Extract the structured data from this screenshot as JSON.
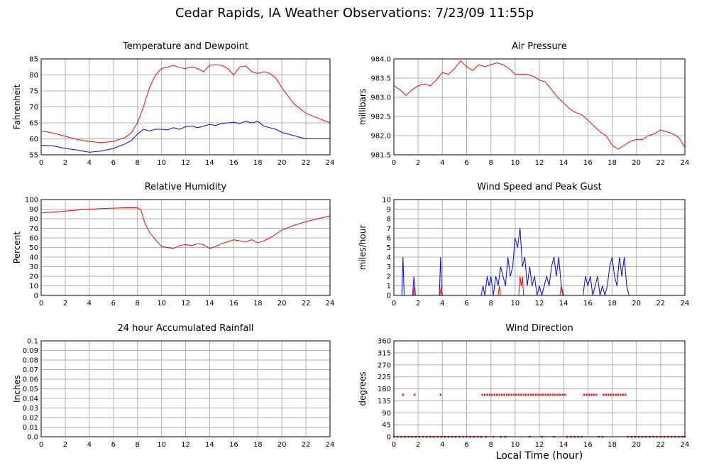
{
  "page": {
    "title": "Cedar Rapids, IA Weather Observations: 7/23/09 11:55p",
    "xaxis_title": "Local Time (hour)"
  },
  "colors": {
    "red": "#ff0000",
    "blue": "#0000ff",
    "grid": "#b0b0b0",
    "frame": "#000000"
  },
  "chart_data": [
    {
      "id": "temp",
      "type": "line",
      "title": "Temperature and Dewpoint",
      "ylabel": "Fahrenheit",
      "xlim": [
        0,
        24
      ],
      "ylim": [
        55,
        85
      ],
      "xticks": [
        0,
        2,
        4,
        6,
        8,
        10,
        12,
        14,
        16,
        18,
        20,
        22,
        24
      ],
      "yticks": [
        55,
        60,
        65,
        70,
        75,
        80,
        85
      ],
      "ytick_labels": [
        "55",
        "60",
        "65",
        "70",
        "75",
        "80",
        "85"
      ],
      "series": [
        {
          "color": "red",
          "x": [
            0,
            1,
            2,
            3,
            4,
            5,
            6,
            7,
            7.5,
            8,
            8.5,
            9,
            9.5,
            10,
            10.5,
            11,
            11.5,
            12,
            12.5,
            13,
            13.5,
            14,
            14.5,
            15,
            15.5,
            16,
            16.5,
            17,
            17.5,
            18,
            18.5,
            19,
            19.5,
            20,
            21,
            22,
            23,
            24
          ],
          "y": [
            62.5,
            61.8,
            60.8,
            59.8,
            59.2,
            58.8,
            59.2,
            60.5,
            62,
            65,
            70,
            76,
            80,
            82,
            82.5,
            83,
            82.3,
            82,
            82.5,
            82,
            81,
            83,
            83.2,
            83,
            82,
            80,
            82.5,
            82.8,
            81,
            80.5,
            81,
            80.5,
            79,
            76,
            71,
            68,
            66.5,
            65
          ]
        },
        {
          "color": "blue",
          "x": [
            0,
            1,
            2,
            3,
            4,
            5,
            6,
            7,
            7.5,
            8,
            8.5,
            9,
            9.5,
            10,
            10.5,
            11,
            11.5,
            12,
            12.5,
            13,
            13.5,
            14,
            14.5,
            15,
            15.5,
            16,
            16.5,
            17,
            17.5,
            18,
            18.5,
            19,
            19.5,
            20,
            21,
            22,
            23,
            24
          ],
          "y": [
            58,
            57.8,
            57,
            56.5,
            55.8,
            56.2,
            57,
            58.5,
            59.5,
            61.5,
            63,
            62.5,
            63,
            63,
            62.8,
            63.5,
            63,
            63.8,
            64,
            63.5,
            64,
            64.5,
            64.2,
            64.8,
            65,
            65.2,
            64.8,
            65.5,
            65,
            65.5,
            64,
            63.5,
            63,
            62,
            61,
            60,
            60,
            60
          ]
        }
      ]
    },
    {
      "id": "pressure",
      "type": "line",
      "title": "Air Pressure",
      "ylabel": "millibars",
      "xlim": [
        0,
        24
      ],
      "ylim": [
        981.5,
        984.0
      ],
      "xticks": [
        0,
        2,
        4,
        6,
        8,
        10,
        12,
        14,
        16,
        18,
        20,
        22,
        24
      ],
      "yticks": [
        981.5,
        982.0,
        982.5,
        983.0,
        983.5,
        984.0
      ],
      "ytick_labels": [
        "981.5",
        "982.0",
        "982.5",
        "983.0",
        "983.5",
        "984.0"
      ],
      "series": [
        {
          "color": "red",
          "x": [
            0,
            0.5,
            1,
            1.5,
            2,
            2.5,
            3,
            3.5,
            4,
            4.5,
            5,
            5.5,
            6,
            6.5,
            7,
            7.5,
            8,
            8.5,
            9,
            9.5,
            10,
            10.5,
            11,
            11.5,
            12,
            12.5,
            13,
            13.5,
            14,
            14.5,
            15,
            15.5,
            16,
            16.5,
            17,
            17.5,
            18,
            18.5,
            19,
            19.5,
            20,
            20.5,
            21,
            21.5,
            22,
            22.5,
            23,
            23.5,
            24
          ],
          "y": [
            983.3,
            983.2,
            983.05,
            983.2,
            983.3,
            983.35,
            983.3,
            983.45,
            983.65,
            983.6,
            983.75,
            983.95,
            983.8,
            983.7,
            983.85,
            983.8,
            983.85,
            983.9,
            983.85,
            983.75,
            983.6,
            983.6,
            983.6,
            983.55,
            983.45,
            983.4,
            983.2,
            983.0,
            982.85,
            982.7,
            982.6,
            982.55,
            982.4,
            982.25,
            982.1,
            982.0,
            981.75,
            981.65,
            981.75,
            981.85,
            981.9,
            981.9,
            982.0,
            982.05,
            982.15,
            982.1,
            982.05,
            981.95,
            981.7
          ]
        }
      ]
    },
    {
      "id": "humidity",
      "type": "line",
      "title": "Relative Humidity",
      "ylabel": "Percent",
      "xlim": [
        0,
        24
      ],
      "ylim": [
        0,
        100
      ],
      "xticks": [
        0,
        2,
        4,
        6,
        8,
        10,
        12,
        14,
        16,
        18,
        20,
        22,
        24
      ],
      "yticks": [
        0,
        10,
        20,
        30,
        40,
        50,
        60,
        70,
        80,
        90,
        100
      ],
      "ytick_labels": [
        "0",
        "10",
        "20",
        "30",
        "40",
        "50",
        "60",
        "70",
        "80",
        "90",
        "100"
      ],
      "series": [
        {
          "color": "red",
          "x": [
            0,
            1,
            2,
            3,
            4,
            5,
            6,
            7,
            8,
            8.3,
            8.6,
            9,
            9.5,
            10,
            10.5,
            11,
            11.5,
            12,
            12.5,
            13,
            13.5,
            14,
            14.5,
            15,
            15.5,
            16,
            16.5,
            17,
            17.5,
            18,
            18.5,
            19,
            19.5,
            20,
            21,
            22,
            23,
            24
          ],
          "y": [
            86,
            87,
            88,
            89,
            90,
            90.5,
            91,
            91.5,
            91.5,
            89,
            76,
            66,
            58,
            51,
            50,
            49,
            52,
            53,
            52,
            54,
            53,
            49,
            51,
            54,
            56,
            58,
            57,
            56,
            58,
            55,
            57,
            60,
            64,
            68,
            73,
            77,
            80,
            83
          ]
        }
      ]
    },
    {
      "id": "wind",
      "type": "line",
      "title": "Wind Speed and Peak Gust",
      "ylabel": "miles/hour",
      "xlim": [
        0,
        24
      ],
      "ylim": [
        0,
        10
      ],
      "xticks": [
        0,
        2,
        4,
        6,
        8,
        10,
        12,
        14,
        16,
        18,
        20,
        22,
        24
      ],
      "yticks": [
        0,
        1,
        2,
        3,
        4,
        5,
        6,
        7,
        8,
        9,
        10
      ],
      "ytick_labels": [
        "0",
        "1",
        "2",
        "3",
        "4",
        "5",
        "6",
        "7",
        "8",
        "9",
        "10"
      ],
      "series": [
        {
          "color": "blue",
          "x": [
            0,
            0.65,
            0.75,
            0.85,
            1.55,
            1.65,
            1.75,
            3.75,
            3.85,
            3.95,
            7.2,
            7.35,
            7.5,
            7.7,
            7.85,
            8,
            8.2,
            8.4,
            8.6,
            8.8,
            9,
            9.2,
            9.4,
            9.6,
            9.8,
            10,
            10.2,
            10.4,
            10.6,
            10.8,
            11,
            11.2,
            11.4,
            11.6,
            11.8,
            12,
            12.2,
            12.4,
            12.6,
            12.8,
            13,
            13.2,
            13.4,
            13.6,
            13.8,
            14,
            14.2,
            15.6,
            15.8,
            16,
            16.2,
            16.4,
            16.6,
            16.8,
            17,
            17.2,
            17.4,
            17.6,
            17.8,
            18,
            18.2,
            18.4,
            18.6,
            18.8,
            19,
            19.2,
            19.4,
            24
          ],
          "y": [
            0,
            0,
            4,
            0,
            0,
            2,
            0,
            0,
            4,
            0,
            0,
            1,
            0,
            2,
            1,
            2,
            0,
            2,
            1,
            3,
            2,
            1,
            4,
            2,
            3,
            6,
            5,
            7,
            3,
            4,
            1,
            3,
            1,
            2,
            0,
            1,
            0,
            1,
            2,
            1,
            3,
            4,
            2,
            4,
            1,
            0,
            0,
            0,
            2,
            1,
            2,
            0,
            1,
            2,
            0,
            1,
            0,
            1,
            3,
            4,
            2,
            1,
            4,
            2,
            4,
            1,
            0,
            0
          ]
        },
        {
          "color": "red",
          "x": [
            0,
            1.6,
            1.7,
            1.8,
            3.8,
            3.9,
            4.0,
            8.6,
            8.7,
            8.8,
            10.3,
            10.4,
            10.5,
            10.6,
            10.7,
            13.7,
            13.8,
            13.9,
            24
          ],
          "y": [
            0,
            0,
            1,
            0,
            0,
            1,
            0,
            0,
            1,
            0,
            0,
            2,
            1,
            2,
            0,
            0,
            1,
            0,
            0
          ]
        }
      ]
    },
    {
      "id": "rain",
      "type": "line",
      "title": "24 hour Accumulated Rainfall",
      "ylabel": "Inches",
      "xlim": [
        0,
        24
      ],
      "ylim": [
        0,
        0.1
      ],
      "xticks": [
        0,
        2,
        4,
        6,
        8,
        10,
        12,
        14,
        16,
        18,
        20,
        22,
        24
      ],
      "yticks": [
        0,
        0.01,
        0.02,
        0.03,
        0.04,
        0.05,
        0.06,
        0.07,
        0.08,
        0.09,
        0.1
      ],
      "ytick_labels": [
        "0.0",
        "0.01",
        "0.02",
        "0.03",
        "0.04",
        "0.05",
        "0.06",
        "0.07",
        "0.08",
        "0.09",
        "0.1"
      ],
      "series": [
        {
          "color": "red",
          "x": [
            0,
            24
          ],
          "y": [
            0,
            0
          ]
        }
      ]
    },
    {
      "id": "direction",
      "type": "scatter",
      "title": "Wind Direction",
      "ylabel": "degrees",
      "xlim": [
        0,
        24
      ],
      "ylim": [
        0,
        360
      ],
      "xticks": [
        0,
        2,
        4,
        6,
        8,
        10,
        12,
        14,
        16,
        18,
        20,
        22,
        24
      ],
      "yticks": [
        0,
        45,
        90,
        135,
        180,
        225,
        270,
        315,
        360
      ],
      "ytick_labels": [
        "0",
        "45",
        "90",
        "135",
        "180",
        "225",
        "270",
        "315",
        "360"
      ],
      "series": [
        {
          "color": "red",
          "x": [
            0.75,
            1.7,
            3.85,
            7.3,
            7.5,
            7.7,
            7.9,
            8.1,
            8.3,
            8.5,
            8.7,
            8.9,
            9.1,
            9.3,
            9.5,
            9.7,
            9.9,
            10.1,
            10.3,
            10.5,
            10.7,
            10.9,
            11.1,
            11.3,
            11.5,
            11.7,
            11.9,
            12.1,
            12.3,
            12.5,
            12.7,
            12.9,
            13.1,
            13.3,
            13.5,
            13.7,
            13.9,
            14.1,
            15.7,
            15.9,
            16.1,
            16.3,
            16.5,
            16.7,
            17.3,
            17.5,
            17.7,
            17.9,
            18.1,
            18.3,
            18.5,
            18.7,
            18.9,
            19.1
          ],
          "y": [
            158,
            158,
            158,
            158,
            158,
            158,
            158,
            158,
            158,
            158,
            158,
            158,
            158,
            158,
            158,
            158,
            158,
            158,
            158,
            158,
            158,
            158,
            158,
            158,
            158,
            158,
            158,
            158,
            158,
            158,
            158,
            158,
            158,
            158,
            158,
            158,
            158,
            158,
            158,
            158,
            158,
            158,
            158,
            158,
            158,
            158,
            158,
            158,
            158,
            158,
            158,
            158,
            158,
            158
          ]
        },
        {
          "color": "red",
          "x": [
            0,
            0.3,
            0.6,
            0.9,
            1.2,
            1.5,
            1.8,
            2.1,
            2.4,
            2.7,
            3.0,
            3.3,
            3.6,
            3.9,
            4.2,
            4.5,
            4.8,
            5.1,
            5.4,
            5.7,
            6.0,
            6.3,
            6.6,
            6.9,
            7.2,
            7.6,
            8.2,
            8.8,
            9.2,
            11.2,
            12.2,
            13.2,
            14.3,
            14.6,
            14.9,
            15.2,
            15.5,
            16.9,
            17.2,
            19.3,
            19.6,
            19.9,
            20.2,
            20.5,
            20.8,
            21.1,
            21.4,
            21.7,
            22.0,
            22.3,
            22.6,
            22.9,
            23.2,
            23.5,
            23.8,
            24
          ],
          "y": [
            0,
            0,
            0,
            0,
            0,
            0,
            0,
            0,
            0,
            0,
            0,
            0,
            0,
            0,
            0,
            0,
            0,
            0,
            0,
            0,
            0,
            0,
            0,
            0,
            0,
            0,
            0,
            0,
            0,
            0,
            0,
            0,
            0,
            0,
            0,
            0,
            0,
            0,
            0,
            0,
            0,
            0,
            0,
            0,
            0,
            0,
            0,
            0,
            0,
            0,
            0,
            0,
            0,
            0,
            0,
            0
          ]
        }
      ]
    }
  ]
}
